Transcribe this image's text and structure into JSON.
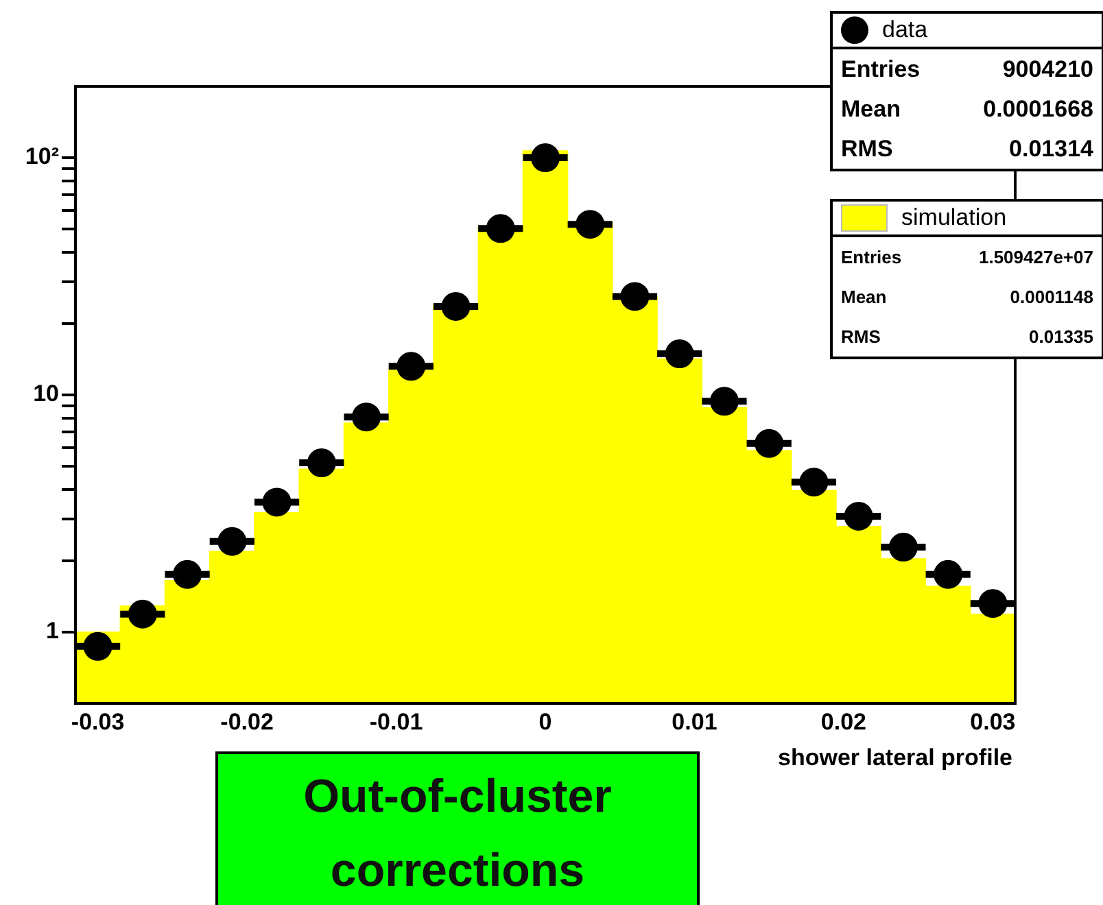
{
  "chart_data": {
    "type": "histogram",
    "title": "Out-of-cluster corrections",
    "xlabel": "shower lateral profile",
    "bins": [
      -0.0315,
      -0.0285,
      -0.0255,
      -0.0225,
      -0.0195,
      -0.0165,
      -0.0135,
      -0.0105,
      -0.0075,
      -0.0045,
      -0.0015,
      0.0015,
      0.0045,
      0.0075,
      0.0105,
      0.0135,
      0.0165,
      0.0195,
      0.0225,
      0.0255,
      0.0285,
      0.0315
    ],
    "series": [
      {
        "name": "data",
        "type": "scatter",
        "color": "#000000",
        "x": [
          -0.03,
          -0.027,
          -0.024,
          -0.021,
          -0.018,
          -0.015,
          -0.012,
          -0.009,
          -0.006,
          -0.003,
          0,
          0.003,
          0.006,
          0.009,
          0.012,
          0.015,
          0.018,
          0.021,
          0.024,
          0.027,
          0.03
        ],
        "values": [
          0.87,
          1.19,
          1.75,
          2.41,
          3.53,
          5.17,
          8.07,
          13.2,
          23.6,
          50.3,
          100,
          52.4,
          26.0,
          14.9,
          9.4,
          6.24,
          4.29,
          3.08,
          2.28,
          1.75,
          1.32
        ],
        "xerrors": [
          0.0015,
          0.0015,
          0.0015,
          0.0015,
          0.0015,
          0.0015,
          0.0015,
          0.0015,
          0.0015,
          0.0015,
          0.0015,
          0.0015,
          0.0015,
          0.0015,
          0.0015,
          0.0015,
          0.0015,
          0.0015,
          0.0015,
          0.0015,
          0.0015
        ]
      },
      {
        "name": "simulation",
        "color": "#ffff00",
        "values": [
          1.0,
          1.29,
          1.65,
          2.19,
          3.19,
          4.87,
          7.62,
          12.7,
          23.8,
          50.7,
          107,
          53.1,
          26.0,
          14.2,
          8.83,
          5.83,
          3.95,
          2.79,
          2.04,
          1.56,
          1.19
        ]
      }
    ],
    "annotations": [
      "Entries 9004210",
      "Mean 0.0001668",
      "RMS 0.01314",
      "Entries 1.509427e+07",
      "Mean 0.0001148",
      "RMS 0.01335"
    ],
    "xlim": [
      -0.0315,
      0.0315
    ],
    "xticks": [
      -0.03,
      -0.02,
      -0.01,
      0,
      0.01,
      0.02,
      0.03
    ],
    "ylim": [
      0.5,
      200
    ],
    "yticks": [
      1,
      {
        "value": 2,
        "label": null
      },
      {
        "value": 3,
        "label": null
      },
      {
        "value": 4,
        "label": null
      },
      {
        "value": 5,
        "label": null
      },
      {
        "value": 6,
        "label": null
      },
      {
        "value": 7,
        "label": null
      },
      {
        "value": 8,
        "label": null
      },
      {
        "value": 9,
        "label": null
      },
      10,
      {
        "value": 20,
        "label": null
      },
      {
        "value": 30,
        "label": null
      },
      {
        "value": 40,
        "label": null
      },
      {
        "value": 50,
        "label": null
      },
      {
        "value": 60,
        "label": null
      },
      {
        "value": 70,
        "label": null
      },
      {
        "value": 80,
        "label": null
      },
      {
        "value": 90,
        "label": null
      },
      {
        "value": 100,
        "label": "10²"
      }
    ],
    "log": "y",
    "grid": false,
    "legend": "top right",
    "marker": "circle"
  }
}
